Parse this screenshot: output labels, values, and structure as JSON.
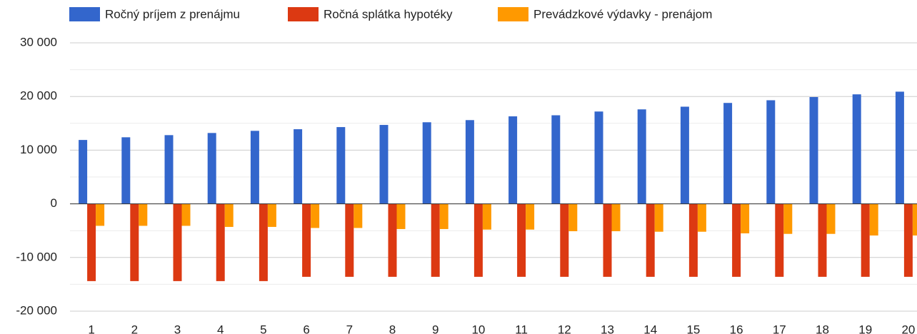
{
  "chart_data": {
    "type": "bar",
    "categories": [
      "1",
      "2",
      "3",
      "4",
      "5",
      "6",
      "7",
      "8",
      "9",
      "10",
      "11",
      "12",
      "13",
      "14",
      "15",
      "16",
      "17",
      "18",
      "19",
      "20"
    ],
    "series": [
      {
        "name": "Ročný príjem z prenájmu",
        "color": "#3366cc",
        "values": [
          11900,
          12400,
          12800,
          13200,
          13600,
          13900,
          14300,
          14700,
          15200,
          15600,
          16300,
          16500,
          17200,
          17600,
          18100,
          18800,
          19300,
          19900,
          20400,
          20900
        ]
      },
      {
        "name": "Ročná splátka hypotéky",
        "color": "#dc3912",
        "values": [
          -14400,
          -14400,
          -14400,
          -14400,
          -14400,
          -13600,
          -13600,
          -13600,
          -13600,
          -13600,
          -13600,
          -13600,
          -13600,
          -13600,
          -13600,
          -13600,
          -13600,
          -13600,
          -13600,
          -13600
        ]
      },
      {
        "name": "Prevádzkové výdavky - prenájom",
        "color": "#ff9900",
        "values": [
          -4100,
          -4100,
          -4100,
          -4300,
          -4300,
          -4500,
          -4500,
          -4700,
          -4700,
          -4800,
          -4800,
          -5100,
          -5100,
          -5200,
          -5200,
          -5500,
          -5600,
          -5600,
          -5900,
          -5900
        ]
      }
    ],
    "ylim": [
      -20000,
      30000
    ],
    "yticks": [
      {
        "value": -20000,
        "label": "-20 000"
      },
      {
        "value": -10000,
        "label": "-10 000"
      },
      0,
      {
        "value": 10000,
        "label": "10 000"
      },
      {
        "value": 20000,
        "label": "20 000"
      },
      {
        "value": 30000,
        "label": "30 000"
      }
    ],
    "minor_yticks": [
      -15000,
      -5000,
      5000,
      15000,
      25000
    ],
    "grid": true,
    "legend": "top"
  }
}
